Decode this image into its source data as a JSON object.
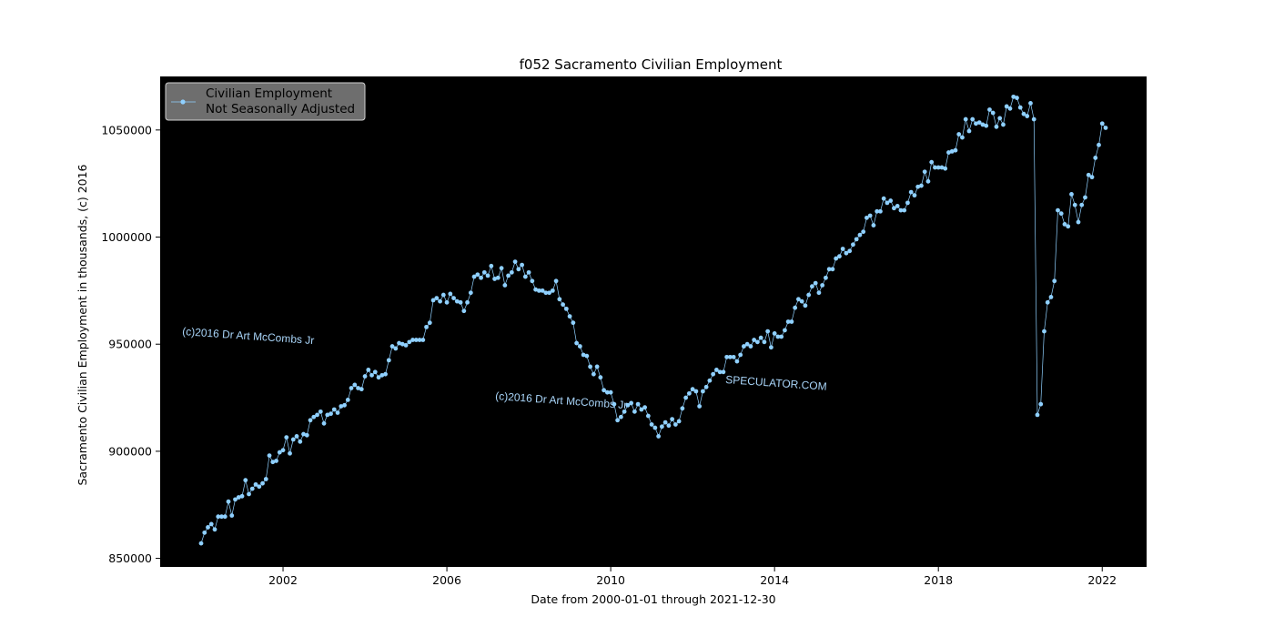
{
  "chart_data": {
    "type": "line",
    "title": "f052 Sacramento Civilian Employment",
    "xlabel": "Date from 2000-01-01 through 2021-12-30",
    "ylabel": "Sacramento Civilian Employment in thousands, (c) 2016",
    "xlim": [
      "1999-01-01",
      "2023-02-01"
    ],
    "ylim": [
      846000,
      1075000
    ],
    "x_ticks": [
      "2002",
      "2006",
      "2010",
      "2014",
      "2018",
      "2022"
    ],
    "y_ticks": [
      "850000",
      "900000",
      "950000",
      "1000000",
      "1050000"
    ],
    "x_tick_years": [
      2002,
      2006,
      2010,
      2014,
      2018,
      2022
    ],
    "y_tick_values": [
      850000,
      900000,
      950000,
      1000000,
      1050000
    ],
    "legend": {
      "position": "upper-left",
      "label_line1": "Civilian Employment",
      "label_line2": "Not Seasonally Adjusted"
    },
    "grid": false,
    "colors": {
      "background": "#000000",
      "series": "#8fd0ff",
      "watermark": "#a8d4f8",
      "legend_bg": "#6e6e6e"
    },
    "watermarks": [
      "(c)2016 Dr Art McCombs Jr",
      "(c)2016 Dr Art McCombs Jr",
      "SPECULATOR.COM"
    ],
    "series": [
      {
        "name": "Civilian Employment Not Seasonally Adjusted",
        "start_year": 2000,
        "start_month": 1,
        "frequency": "monthly",
        "values": [
          857000,
          862000,
          864500,
          866000,
          863500,
          869500,
          869500,
          869500,
          876500,
          870000,
          877500,
          878500,
          879000,
          886500,
          880000,
          882500,
          884500,
          883500,
          885000,
          887000,
          898000,
          895000,
          895500,
          899500,
          900500,
          906500,
          899000,
          905500,
          907000,
          904500,
          908000,
          907500,
          914500,
          916000,
          917000,
          918500,
          913000,
          917000,
          917500,
          919500,
          918000,
          921000,
          921500,
          924000,
          929500,
          931000,
          929500,
          929000,
          935000,
          938000,
          935500,
          937000,
          934500,
          935500,
          936000,
          942500,
          949000,
          948000,
          950500,
          950000,
          949500,
          951000,
          952000,
          952000,
          952000,
          952000,
          958000,
          960000,
          970500,
          971500,
          970000,
          973000,
          969500,
          973500,
          971500,
          970000,
          969500,
          965500,
          969500,
          974000,
          981500,
          982500,
          981000,
          983500,
          982000,
          986500,
          980500,
          981000,
          985500,
          977500,
          982000,
          983500,
          988500,
          985000,
          987000,
          981500,
          983500,
          979500,
          975500,
          975000,
          975000,
          974000,
          974000,
          975000,
          979500,
          971000,
          968500,
          966500,
          963000,
          960000,
          950500,
          949000,
          945000,
          944500,
          939500,
          936000,
          939500,
          934500,
          928500,
          927500,
          927500,
          922000,
          914500,
          916000,
          918500,
          921500,
          922500,
          918500,
          922000,
          919500,
          920500,
          916500,
          912500,
          911000,
          907000,
          911500,
          913500,
          912000,
          915000,
          912500,
          914000,
          920000,
          925000,
          927000,
          929000,
          928000,
          921000,
          928000,
          930000,
          933000,
          936000,
          938000,
          937000,
          937000,
          944000,
          944000,
          944000,
          942000,
          945000,
          949000,
          950000,
          949000,
          952000,
          951000,
          953000,
          951000,
          956000,
          948500,
          955000,
          953500,
          953500,
          956500,
          960500,
          960500,
          967000,
          971000,
          970000,
          968000,
          973000,
          977000,
          978500,
          974000,
          977500,
          981000,
          985000,
          985000,
          990000,
          991000,
          994500,
          992500,
          993500,
          996500,
          999000,
          1001000,
          1002500,
          1009000,
          1010000,
          1005500,
          1012000,
          1012000,
          1018000,
          1016000,
          1017000,
          1013500,
          1014500,
          1012500,
          1012500,
          1016000,
          1021000,
          1019500,
          1023500,
          1024000,
          1030500,
          1026000,
          1035000,
          1032500,
          1032500,
          1032500,
          1032000,
          1039500,
          1040000,
          1040500,
          1048000,
          1046500,
          1055000,
          1049500,
          1055000,
          1053000,
          1053500,
          1052500,
          1052000,
          1059500,
          1058000,
          1051500,
          1055500,
          1052500,
          1061000,
          1060000,
          1065500,
          1065000,
          1060500,
          1057500,
          1056500,
          1062500,
          1055000,
          917000,
          922000,
          956000,
          969500,
          972000,
          979500,
          1012500,
          1011000,
          1006000,
          1005000,
          1020000,
          1015000,
          1007000,
          1015000,
          1018500,
          1029000,
          1028000,
          1037000,
          1043000,
          1053000,
          1051000
        ]
      }
    ]
  }
}
